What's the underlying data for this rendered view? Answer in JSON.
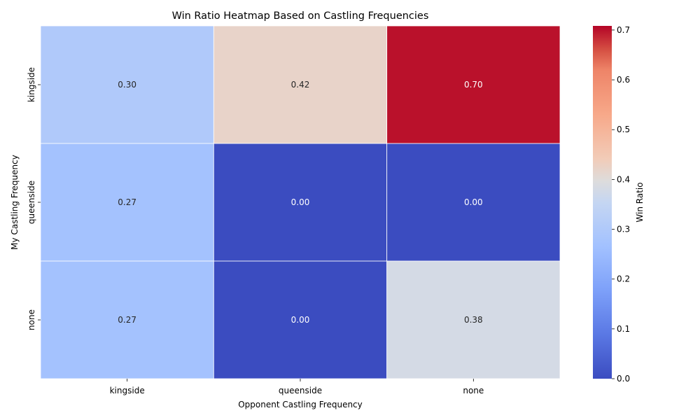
{
  "chart_data": {
    "type": "heatmap",
    "title": "Win Ratio Heatmap Based on Castling Frequencies",
    "xlabel": "Opponent Castling Frequency",
    "ylabel": "My Castling Frequency",
    "x_categories": [
      "kingside",
      "queenside",
      "none"
    ],
    "y_categories": [
      "kingside",
      "queenside",
      "none"
    ],
    "values": [
      [
        0.3,
        0.42,
        0.7
      ],
      [
        0.27,
        0.0,
        0.0
      ],
      [
        0.27,
        0.0,
        0.38
      ]
    ],
    "value_labels": [
      [
        "0.30",
        "0.42",
        "0.70"
      ],
      [
        "0.27",
        "0.00",
        "0.00"
      ],
      [
        "0.27",
        "0.00",
        "0.38"
      ]
    ],
    "colorbar": {
      "label": "Win Ratio",
      "range": [
        0,
        0.7083
      ],
      "ticks": [
        "0.0",
        "0.1",
        "0.2",
        "0.3",
        "0.4",
        "0.5",
        "0.6",
        "0.7"
      ],
      "colormap": "coolwarm"
    },
    "grid": false
  }
}
